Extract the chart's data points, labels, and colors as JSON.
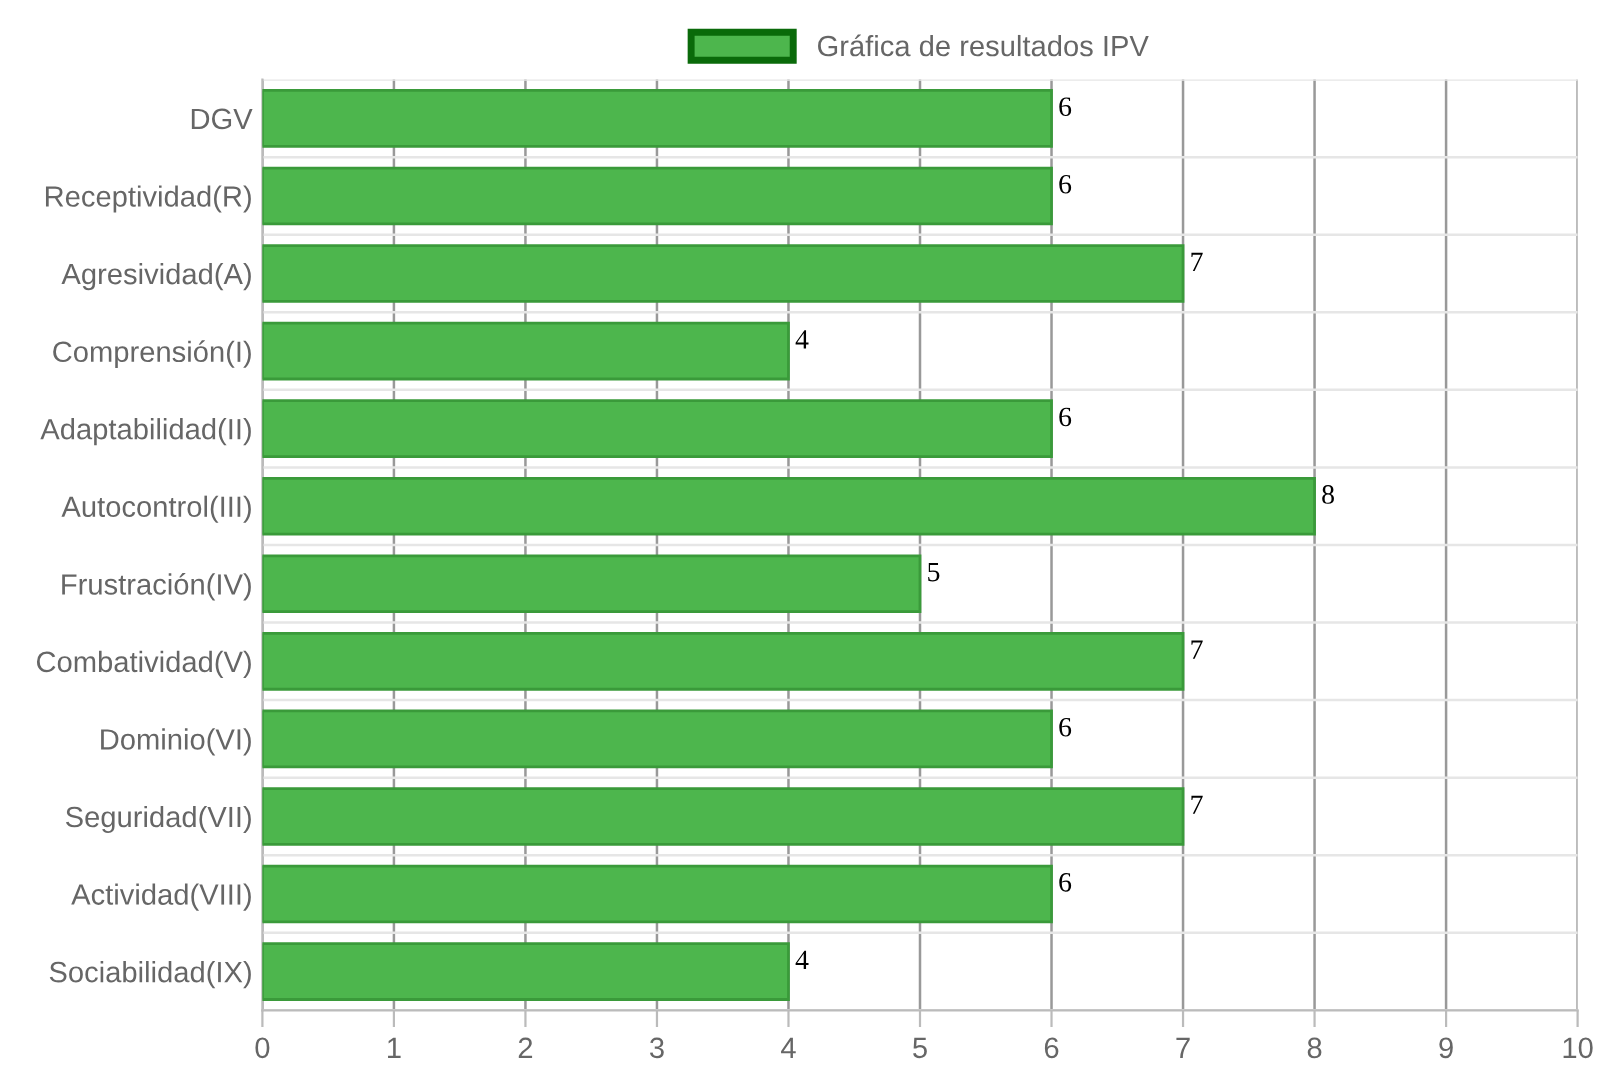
{
  "chart_data": {
    "type": "bar",
    "orientation": "horizontal",
    "categories": [
      "DGV",
      "Receptividad(R)",
      "Agresividad(A)",
      "Comprensión(I)",
      "Adaptabilidad(II)",
      "Autocontrol(III)",
      "Frustración(IV)",
      "Combatividad(V)",
      "Dominio(VI)",
      "Seguridad(VII)",
      "Actividad(VIII)",
      "Sociabilidad(IX)"
    ],
    "series": [
      {
        "name": "Gráfica de resultados IPV",
        "color": "#4db64d",
        "values": [
          6,
          6,
          7,
          4,
          6,
          8,
          5,
          7,
          6,
          7,
          6,
          4
        ]
      }
    ],
    "xlim": [
      0,
      10
    ],
    "xticks": [
      0,
      1,
      2,
      3,
      4,
      5,
      6,
      7,
      8,
      9,
      10
    ],
    "grid": true,
    "legend": "top",
    "data_labels": true
  }
}
